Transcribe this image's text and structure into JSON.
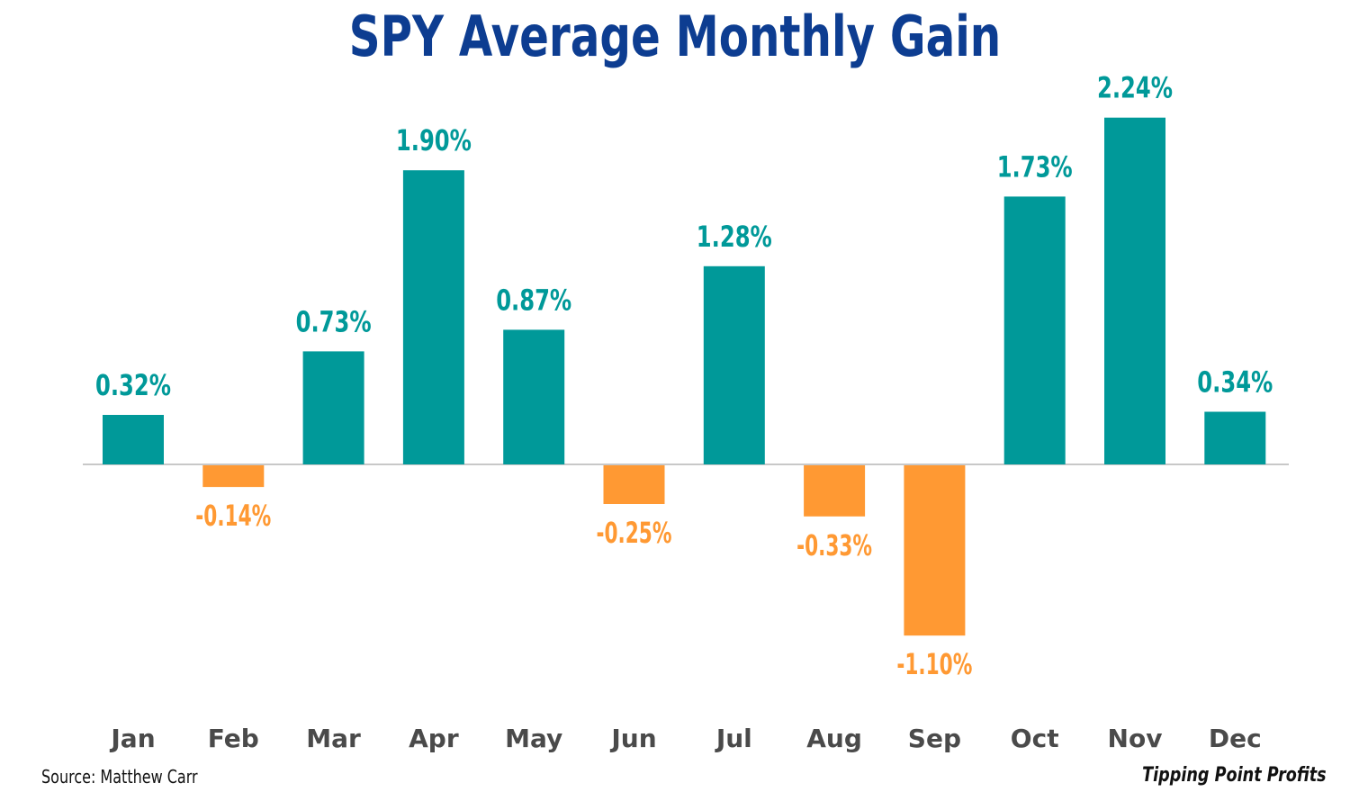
{
  "chart_data": {
    "type": "bar",
    "title": "SPY Average Monthly Gain",
    "categories": [
      "Jan",
      "Feb",
      "Mar",
      "Apr",
      "May",
      "Jun",
      "Jul",
      "Aug",
      "Sep",
      "Oct",
      "Nov",
      "Dec"
    ],
    "values": [
      0.32,
      -0.14,
      0.73,
      1.9,
      0.87,
      -0.25,
      1.28,
      -0.33,
      -1.1,
      1.73,
      2.24,
      0.34
    ],
    "data_labels": [
      "0.32%",
      "-0.14%",
      "0.73%",
      "1.90%",
      "0.87%",
      "-0.25%",
      "1.28%",
      "-0.33%",
      "-1.10%",
      "1.73%",
      "2.24%",
      "0.34%"
    ],
    "xlabel": "",
    "ylabel": "",
    "grid": false,
    "colors": {
      "positive": "#009999",
      "negative": "#ff9933",
      "title": "#0d3d91",
      "axis": "#c8c8c8",
      "month_label": "#4a4a4a"
    }
  },
  "footer": {
    "source": "Source: Matthew Carr",
    "brand": "Tipping Point Profits"
  }
}
